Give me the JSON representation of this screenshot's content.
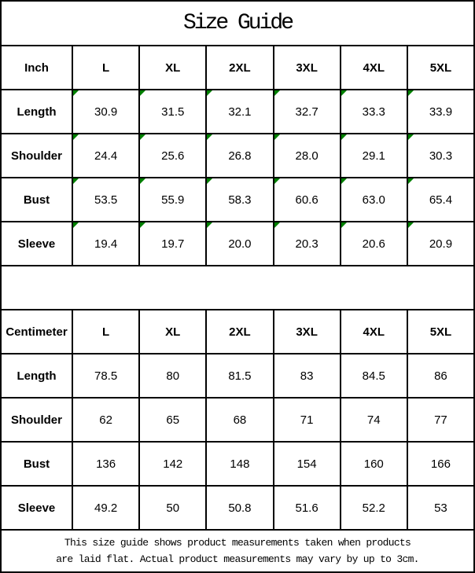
{
  "title": "Size Guide",
  "colors": {
    "border": "#000000",
    "background": "#ffffff",
    "text": "#000000",
    "marker_green": "#008000"
  },
  "tables": [
    {
      "unit": "Inch",
      "header": [
        "Inch",
        "L",
        "XL",
        "2XL",
        "3XL",
        "4XL",
        "5XL"
      ],
      "rows": [
        {
          "label": "Length",
          "values": [
            "30.9",
            "31.5",
            "32.1",
            "32.7",
            "33.3",
            "33.9"
          ]
        },
        {
          "label": "Shoulder",
          "values": [
            "24.4",
            "25.6",
            "26.8",
            "28.0",
            "29.1",
            "30.3"
          ]
        },
        {
          "label": "Bust",
          "values": [
            "53.5",
            "55.9",
            "58.3",
            "60.6",
            "63.0",
            "65.4"
          ]
        },
        {
          "label": "Sleeve",
          "values": [
            "19.4",
            "19.7",
            "20.0",
            "20.3",
            "20.6",
            "20.9"
          ]
        }
      ]
    },
    {
      "unit": "Centimeter",
      "header": [
        "Centimeter",
        "L",
        "XL",
        "2XL",
        "3XL",
        "4XL",
        "5XL"
      ],
      "rows": [
        {
          "label": "Length",
          "values": [
            "78.5",
            "80",
            "81.5",
            "83",
            "84.5",
            "86"
          ]
        },
        {
          "label": "Shoulder",
          "values": [
            "62",
            "65",
            "68",
            "71",
            "74",
            "77"
          ]
        },
        {
          "label": "Bust",
          "values": [
            "136",
            "142",
            "148",
            "154",
            "160",
            "166"
          ]
        },
        {
          "label": "Sleeve",
          "values": [
            "49.2",
            "50",
            "50.8",
            "51.6",
            "52.2",
            "53"
          ]
        }
      ]
    }
  ],
  "footer": {
    "line1": "This size guide shows product measurements taken when products",
    "line2": "are laid flat. Actual product measurements may vary by up to 3cm."
  }
}
